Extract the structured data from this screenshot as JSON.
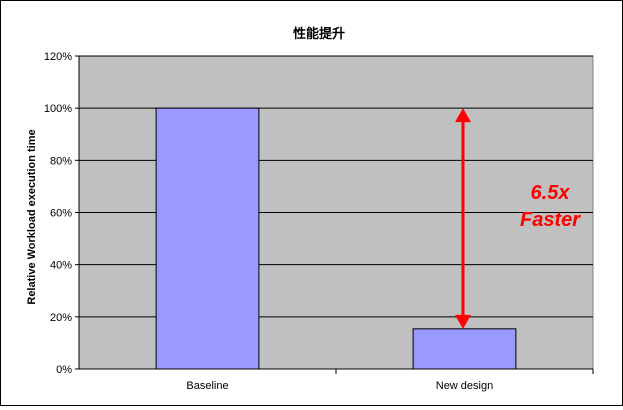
{
  "chart_data": {
    "type": "bar",
    "title": "性能提升",
    "xlabel": "",
    "ylabel": "Relative Workload execution time",
    "categories": [
      "Baseline",
      "New design"
    ],
    "values": [
      100,
      15.4
    ],
    "ylim": [
      0,
      120
    ],
    "yticks": [
      "0%",
      "20%",
      "40%",
      "60%",
      "80%",
      "100%",
      "120%"
    ],
    "ytick_values": [
      0,
      20,
      40,
      60,
      80,
      100,
      120
    ],
    "grid": true,
    "legend": "none",
    "bar_color": "#9999ff",
    "plot_background": "#c0c0c0",
    "annotation": {
      "line1": "6.5x",
      "line2": "Faster",
      "color": "#ff0000",
      "arrow_from": 15.4,
      "arrow_to": 100
    }
  }
}
